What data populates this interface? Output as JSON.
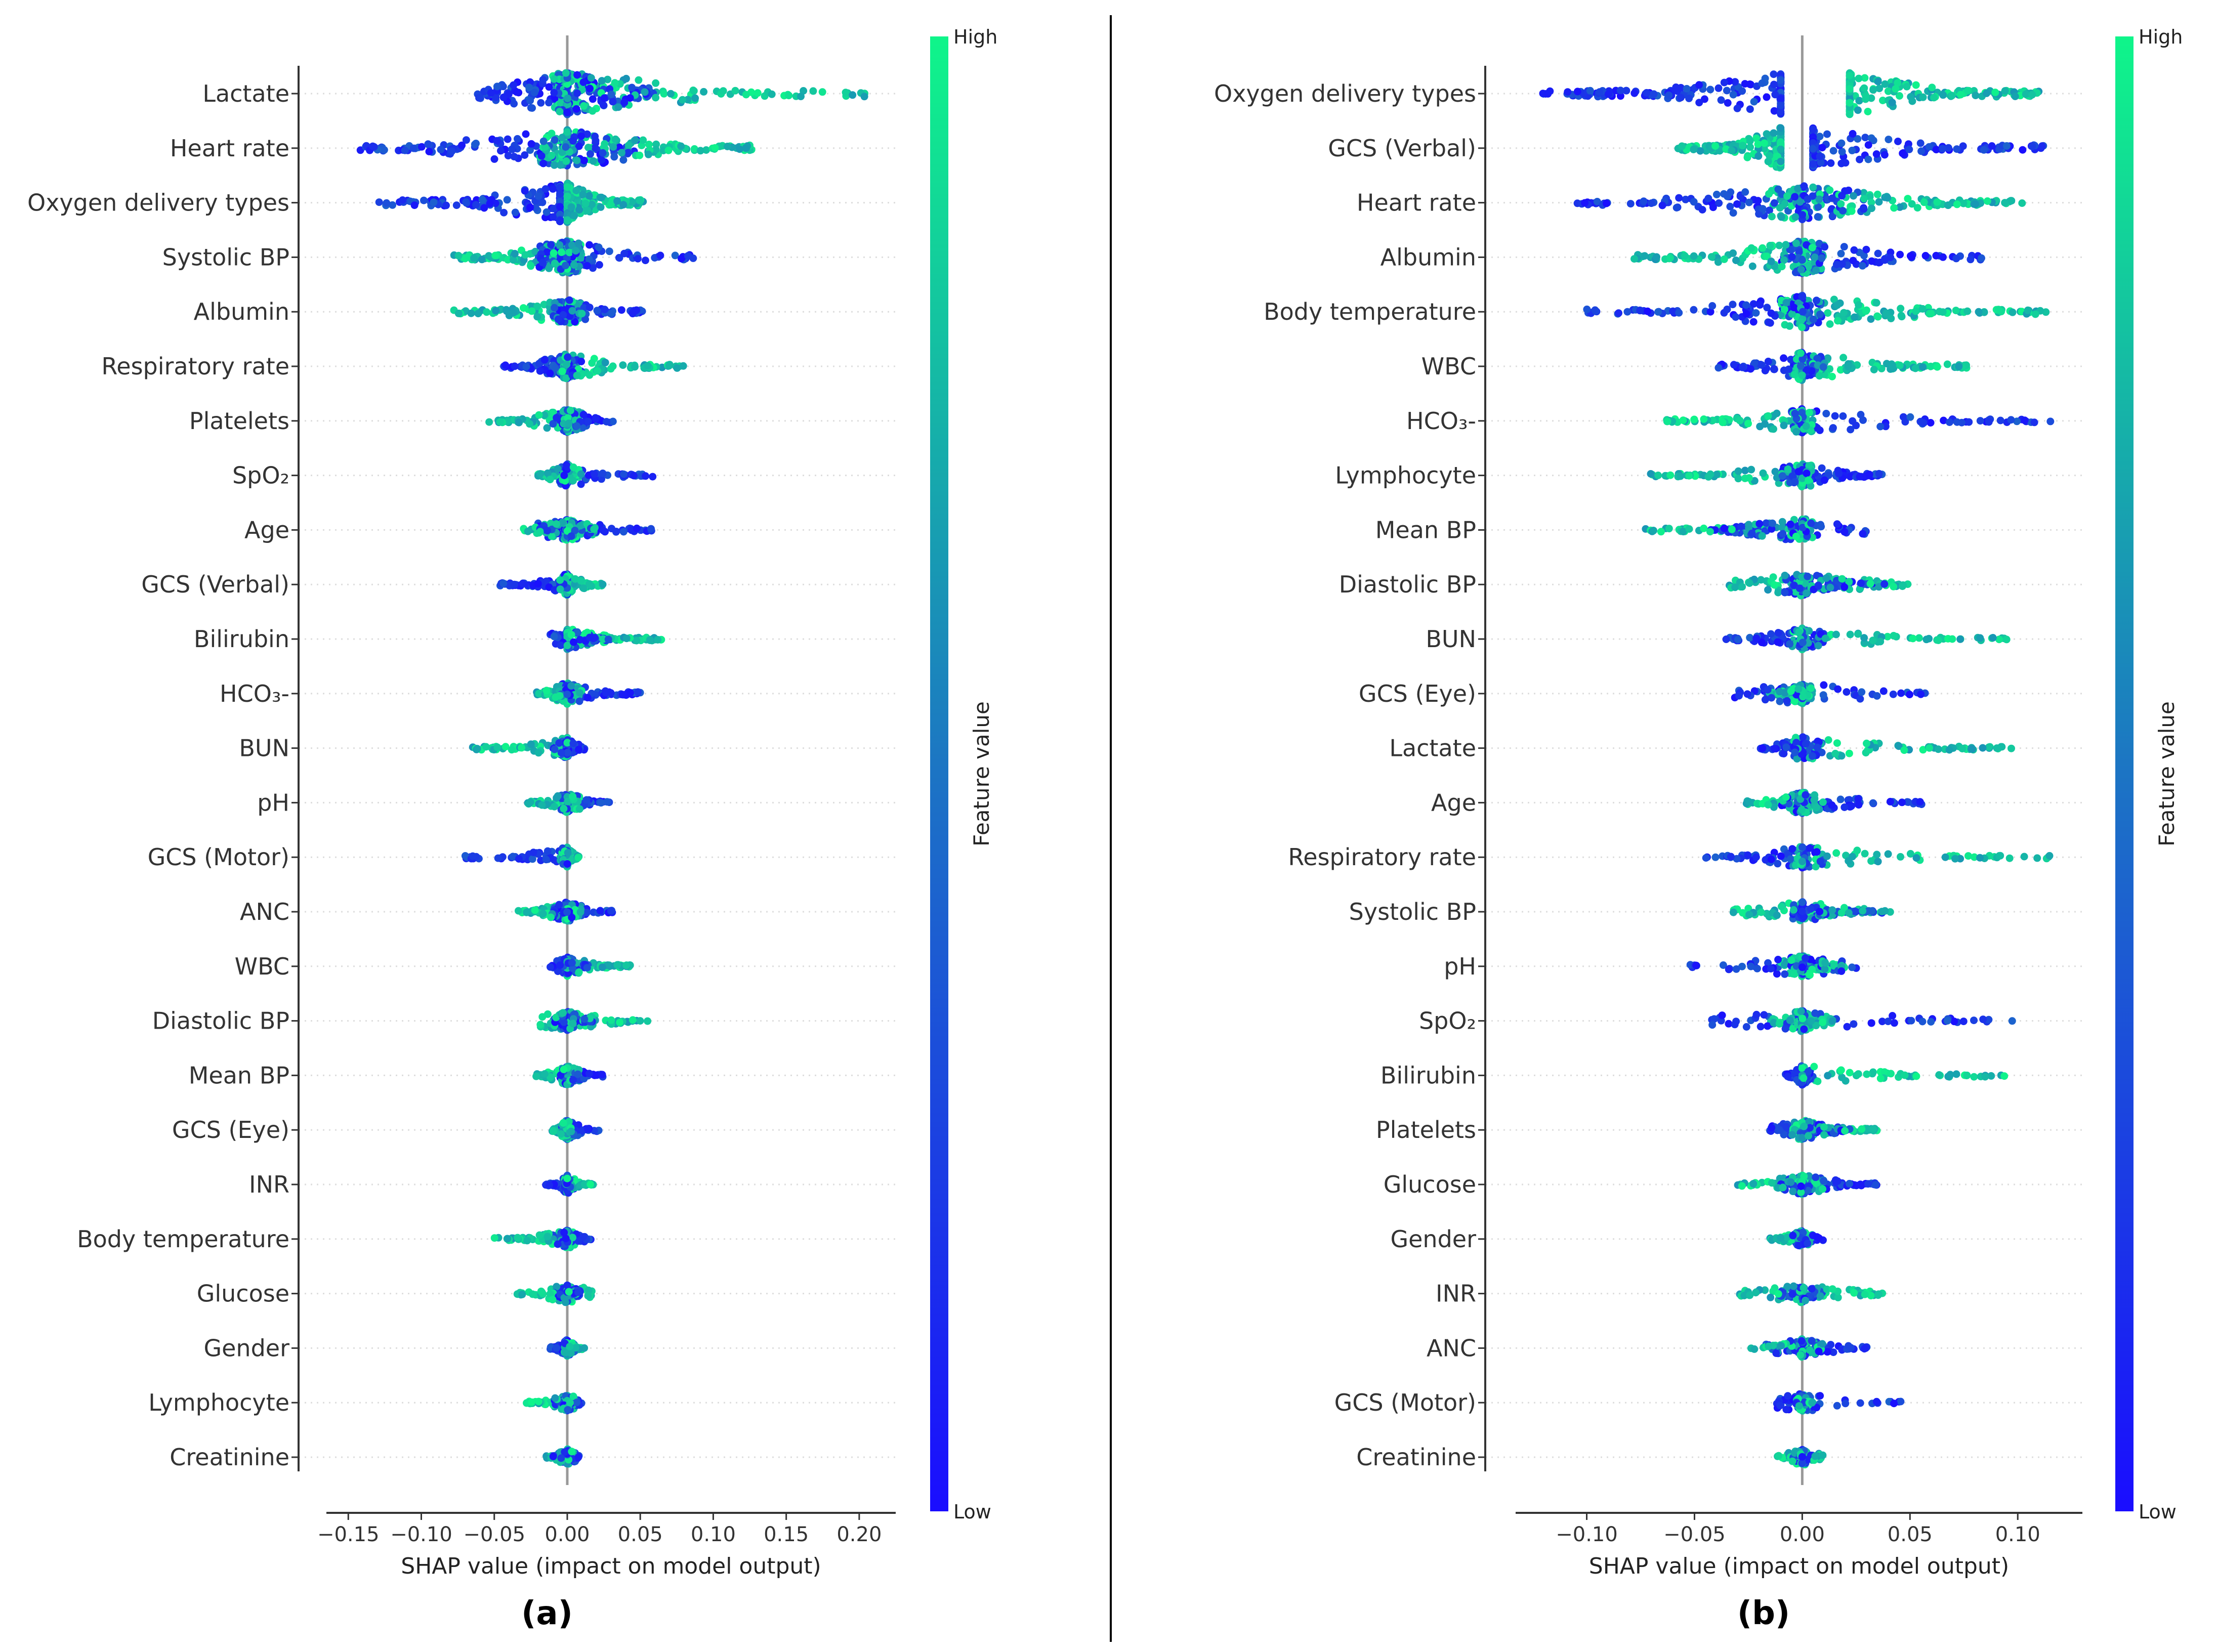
{
  "chart_data": [
    {
      "type": "scatter",
      "subtype": "shap-beeswarm",
      "panel_label": "(a)",
      "xlabel": "SHAP value (impact on model output)",
      "xlim": [
        -0.165,
        0.225
      ],
      "xticks": [
        -0.15,
        -0.1,
        -0.05,
        0.0,
        0.05,
        0.1,
        0.15,
        0.2
      ],
      "xtick_labels": [
        "−0.15",
        "−0.10",
        "−0.05",
        "0.00",
        "0.05",
        "0.10",
        "0.15",
        "0.20"
      ],
      "colorbar": {
        "label": "Feature value",
        "high": "High",
        "low": "Low"
      },
      "features": [
        {
          "name": "Lactate",
          "low_min": -0.062,
          "low_max": 0.06,
          "high_min": -0.01,
          "high_max": 0.21,
          "density": 1.0
        },
        {
          "name": "Heart rate",
          "low_min": -0.145,
          "low_max": 0.05,
          "high_min": -0.02,
          "high_max": 0.13,
          "density": 0.85
        },
        {
          "name": "Oxygen delivery types",
          "low_min": -0.13,
          "low_max": -0.005,
          "high_min": 0.0,
          "high_max": 0.052,
          "density": 0.9
        },
        {
          "name": "Systolic BP",
          "low_min": -0.02,
          "low_max": 0.088,
          "high_min": -0.078,
          "high_max": 0.01,
          "density": 0.7
        },
        {
          "name": "Albumin",
          "low_min": -0.01,
          "low_max": 0.052,
          "high_min": -0.082,
          "high_max": 0.01,
          "density": 0.45
        },
        {
          "name": "Respiratory rate",
          "low_min": -0.045,
          "low_max": 0.01,
          "high_min": -0.005,
          "high_max": 0.08,
          "density": 0.45
        },
        {
          "name": "Platelets",
          "low_min": -0.01,
          "low_max": 0.032,
          "high_min": -0.055,
          "high_max": 0.01,
          "density": 0.4
        },
        {
          "name": "SpO₂",
          "low_min": -0.005,
          "low_max": 0.06,
          "high_min": -0.02,
          "high_max": 0.01,
          "density": 0.4
        },
        {
          "name": "Age",
          "low_min": -0.02,
          "low_max": 0.065,
          "high_min": -0.03,
          "high_max": 0.02,
          "density": 0.35
        },
        {
          "name": "GCS (Verbal)",
          "low_min": -0.047,
          "low_max": 0.0,
          "high_min": -0.005,
          "high_max": 0.025,
          "density": 0.35
        },
        {
          "name": "Bilirubin",
          "low_min": -0.012,
          "low_max": 0.03,
          "high_min": 0.0,
          "high_max": 0.065,
          "density": 0.35
        },
        {
          "name": "HCO₃-",
          "low_min": -0.005,
          "low_max": 0.05,
          "high_min": -0.022,
          "high_max": 0.01,
          "density": 0.35
        },
        {
          "name": "BUN",
          "low_min": -0.01,
          "low_max": 0.012,
          "high_min": -0.065,
          "high_max": 0.0,
          "density": 0.35
        },
        {
          "name": "pH",
          "low_min": -0.005,
          "low_max": 0.03,
          "high_min": -0.028,
          "high_max": 0.01,
          "density": 0.3
        },
        {
          "name": "GCS (Motor)",
          "low_min": -0.075,
          "low_max": 0.0,
          "high_min": -0.005,
          "high_max": 0.008,
          "density": 0.3
        },
        {
          "name": "ANC",
          "low_min": -0.01,
          "low_max": 0.032,
          "high_min": -0.035,
          "high_max": 0.01,
          "density": 0.3
        },
        {
          "name": "WBC",
          "low_min": -0.012,
          "low_max": 0.015,
          "high_min": 0.0,
          "high_max": 0.045,
          "density": 0.3
        },
        {
          "name": "Diastolic BP",
          "low_min": -0.01,
          "low_max": 0.018,
          "high_min": -0.022,
          "high_max": 0.055,
          "density": 0.28
        },
        {
          "name": "Mean BP",
          "low_min": -0.005,
          "low_max": 0.025,
          "high_min": -0.022,
          "high_max": 0.01,
          "density": 0.28
        },
        {
          "name": "GCS (Eye)",
          "low_min": -0.005,
          "low_max": 0.022,
          "high_min": -0.012,
          "high_max": 0.005,
          "density": 0.28
        },
        {
          "name": "INR",
          "low_min": -0.015,
          "low_max": 0.005,
          "high_min": -0.002,
          "high_max": 0.018,
          "density": 0.25
        },
        {
          "name": "Body temperature",
          "low_min": -0.01,
          "low_max": 0.018,
          "high_min": -0.05,
          "high_max": 0.005,
          "density": 0.25
        },
        {
          "name": "Glucose",
          "low_min": -0.01,
          "low_max": 0.01,
          "high_min": -0.035,
          "high_max": 0.018,
          "density": 0.25
        },
        {
          "name": "Gender",
          "low_min": -0.012,
          "low_max": 0.005,
          "high_min": -0.002,
          "high_max": 0.012,
          "density": 0.22
        },
        {
          "name": "Lymphocyte",
          "low_min": -0.01,
          "low_max": 0.01,
          "high_min": -0.028,
          "high_max": 0.005,
          "density": 0.2
        },
        {
          "name": "Creatinine",
          "low_min": -0.01,
          "low_max": 0.008,
          "high_min": -0.015,
          "high_max": 0.005,
          "density": 0.2
        }
      ]
    },
    {
      "type": "scatter",
      "subtype": "shap-beeswarm",
      "panel_label": "(b)",
      "xlabel": "SHAP value (impact on model output)",
      "xlim": [
        -0.133,
        0.13
      ],
      "xticks": [
        -0.1,
        -0.05,
        0.0,
        0.05,
        0.1
      ],
      "xtick_labels": [
        "−0.10",
        "−0.05",
        "0.00",
        "0.05",
        "0.10"
      ],
      "colorbar": {
        "label": "Feature value",
        "high": "High",
        "low": "Low"
      },
      "features": [
        {
          "name": "Oxygen delivery types",
          "low_min": -0.122,
          "low_max": -0.01,
          "high_min": 0.022,
          "high_max": 0.11,
          "density": 1.0
        },
        {
          "name": "GCS (Verbal)",
          "low_min": 0.005,
          "low_max": 0.112,
          "high_min": -0.058,
          "high_max": -0.01,
          "density": 0.95
        },
        {
          "name": "Heart rate",
          "low_min": -0.108,
          "low_max": 0.03,
          "high_min": -0.02,
          "high_max": 0.102,
          "density": 0.75
        },
        {
          "name": "Albumin",
          "low_min": -0.01,
          "low_max": 0.085,
          "high_min": -0.08,
          "high_max": 0.01,
          "density": 0.7
        },
        {
          "name": "Body temperature",
          "low_min": -0.1,
          "low_max": 0.01,
          "high_min": -0.01,
          "high_max": 0.115,
          "density": 0.7
        },
        {
          "name": "WBC",
          "low_min": -0.04,
          "low_max": 0.01,
          "high_min": -0.005,
          "high_max": 0.078,
          "density": 0.55
        },
        {
          "name": "HCO₃-",
          "low_min": -0.005,
          "low_max": 0.118,
          "high_min": -0.063,
          "high_max": 0.005,
          "density": 0.45
        },
        {
          "name": "Lymphocyte",
          "low_min": -0.01,
          "low_max": 0.037,
          "high_min": -0.073,
          "high_max": 0.005,
          "density": 0.4
        },
        {
          "name": "Mean BP",
          "low_min": -0.043,
          "low_max": 0.03,
          "high_min": -0.073,
          "high_max": 0.005,
          "density": 0.4
        },
        {
          "name": "Diastolic BP",
          "low_min": -0.01,
          "low_max": 0.04,
          "high_min": -0.035,
          "high_max": 0.05,
          "density": 0.4
        },
        {
          "name": "BUN",
          "low_min": -0.036,
          "low_max": 0.01,
          "high_min": -0.005,
          "high_max": 0.095,
          "density": 0.35
        },
        {
          "name": "GCS (Eye)",
          "low_min": -0.032,
          "low_max": 0.058,
          "high_min": -0.016,
          "high_max": 0.005,
          "density": 0.35
        },
        {
          "name": "Lactate",
          "low_min": -0.02,
          "low_max": 0.01,
          "high_min": -0.005,
          "high_max": 0.097,
          "density": 0.4
        },
        {
          "name": "Age",
          "low_min": -0.01,
          "low_max": 0.057,
          "high_min": -0.027,
          "high_max": 0.01,
          "density": 0.35
        },
        {
          "name": "Respiratory rate",
          "low_min": -0.045,
          "low_max": 0.01,
          "high_min": -0.005,
          "high_max": 0.115,
          "density": 0.35
        },
        {
          "name": "Systolic BP",
          "low_min": -0.005,
          "low_max": 0.038,
          "high_min": -0.032,
          "high_max": 0.042,
          "density": 0.3
        },
        {
          "name": "pH",
          "low_min": -0.052,
          "low_max": 0.028,
          "high_min": -0.01,
          "high_max": 0.02,
          "density": 0.35
        },
        {
          "name": "SpO₂",
          "low_min": -0.045,
          "low_max": 0.098,
          "high_min": -0.015,
          "high_max": 0.015,
          "density": 0.35
        },
        {
          "name": "Bilirubin",
          "low_min": -0.008,
          "low_max": 0.005,
          "high_min": 0.0,
          "high_max": 0.095,
          "density": 0.3
        },
        {
          "name": "Platelets",
          "low_min": -0.015,
          "low_max": 0.022,
          "high_min": -0.005,
          "high_max": 0.035,
          "density": 0.3
        },
        {
          "name": "Glucose",
          "low_min": -0.01,
          "low_max": 0.035,
          "high_min": -0.032,
          "high_max": 0.01,
          "density": 0.3
        },
        {
          "name": "Gender",
          "low_min": -0.005,
          "low_max": 0.01,
          "high_min": -0.015,
          "high_max": 0.005,
          "density": 0.22
        },
        {
          "name": "INR",
          "low_min": -0.012,
          "low_max": 0.01,
          "high_min": -0.03,
          "high_max": 0.038,
          "density": 0.25
        },
        {
          "name": "ANC",
          "low_min": -0.018,
          "low_max": 0.03,
          "high_min": -0.024,
          "high_max": 0.01,
          "density": 0.25
        },
        {
          "name": "GCS (Motor)",
          "low_min": -0.012,
          "low_max": 0.048,
          "high_min": -0.003,
          "high_max": 0.005,
          "density": 0.25
        },
        {
          "name": "Creatinine",
          "low_min": -0.005,
          "low_max": 0.005,
          "high_min": -0.012,
          "high_max": 0.01,
          "density": 0.2
        }
      ]
    }
  ],
  "colors": {
    "low": "#1a0dff",
    "mid": "#1c74c4",
    "high": "#0ff58a",
    "axis": "#333333",
    "zero_line": "#999999",
    "grid": "#dddddd",
    "label": "#333333",
    "divider": "#000000"
  }
}
